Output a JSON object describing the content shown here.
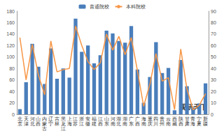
{
  "chart_data": {
    "type": "bar",
    "categories": [
      "北京",
      "天津",
      "河北",
      "山西",
      "内蒙古",
      "辽宁",
      "吉林",
      "黑龙江",
      "上海",
      "江苏",
      "浙江",
      "安徽",
      "福建",
      "江西",
      "山东",
      "河南",
      "湖北",
      "湖南",
      "广东",
      "广西",
      "海南",
      "重庆",
      "四川",
      "贵州",
      "云南",
      "西藏",
      "陕西",
      "甘肃",
      "青海",
      "宁夏",
      "新疆"
    ],
    "series": [
      {
        "name": "普通院校",
        "type": "bar",
        "color": "#4a7ebb",
        "values": [
          9,
          56,
          123,
          83,
          53,
          115,
          62,
          80,
          64,
          167,
          109,
          120,
          89,
          103,
          146,
          141,
          128,
          125,
          154,
          78,
          20,
          65,
          126,
          72,
          81,
          7,
          95,
          49,
          12,
          19,
          54
        ]
      },
      {
        "name": "本科院校",
        "type": "line",
        "color": "#f79646",
        "axis": "y2",
        "values": [
          67,
          30,
          61,
          34,
          17,
          64,
          37,
          39,
          40,
          77,
          60,
          46,
          39,
          45,
          70,
          56,
          68,
          52,
          67,
          38,
          7,
          26,
          53,
          29,
          32,
          4,
          57,
          22,
          4,
          8,
          18
        ]
      }
    ],
    "ylim": [
      0,
      180
    ],
    "yticks": [
      0,
      20,
      40,
      60,
      80,
      100,
      120,
      140,
      160,
      180
    ],
    "y2lim": [
      0,
      90
    ],
    "y2ticks": [
      0,
      10,
      20,
      30,
      40,
      50,
      60,
      70,
      80,
      90
    ],
    "grid": false,
    "legend": "top",
    "annotations": [
      "观研天下"
    ]
  }
}
